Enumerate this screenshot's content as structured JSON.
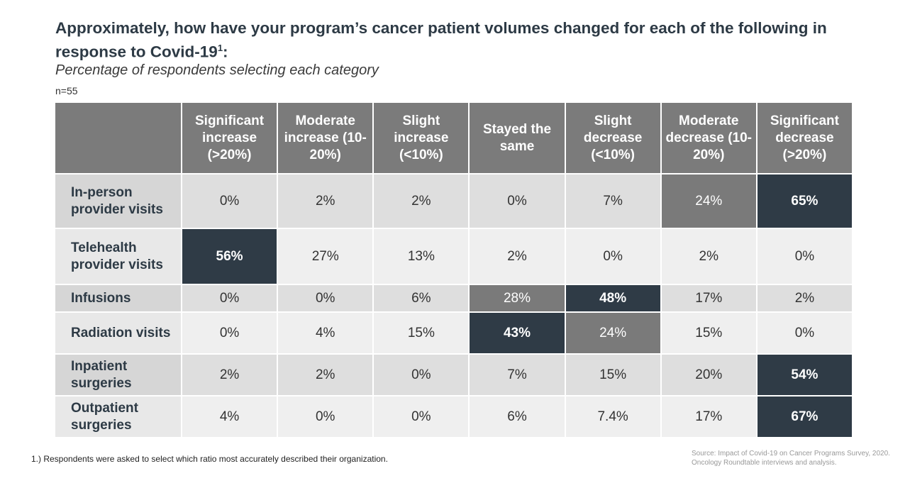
{
  "header": {
    "title": {
      "text": "Approximately, how have your program’s cancer patient volumes changed for each of the following in response to Covid-19",
      "superscript": "1",
      "suffix": ":"
    },
    "subtitle": "Percentage of respondents selecting each category",
    "sample": "n=55"
  },
  "table": {
    "columns": [
      "Significant increase (>20%)",
      "Moderate increase (10-20%)",
      "Slight increase (<10%)",
      "Stayed the same",
      "Slight decrease (<10%)",
      "Moderate decrease (10-20%)",
      "Significant decrease (>20%)"
    ],
    "rows": [
      {
        "label": "In-person provider visits",
        "cells": [
          "0%",
          "2%",
          "2%",
          "0%",
          "7%",
          "24%",
          "65%"
        ],
        "fills": [
          null,
          null,
          null,
          null,
          null,
          "#7a7a7a",
          "#2f3b46"
        ]
      },
      {
        "label": "Telehealth provider visits",
        "cells": [
          "56%",
          "27%",
          "13%",
          "2%",
          "0%",
          "2%",
          "0%"
        ],
        "fills": [
          "#2f3b46",
          null,
          null,
          null,
          null,
          null,
          null
        ]
      },
      {
        "label": "Infusions",
        "cells": [
          "0%",
          "0%",
          "6%",
          "28%",
          "48%",
          "17%",
          "2%"
        ],
        "fills": [
          null,
          null,
          null,
          "#7a7a7a",
          "#2f3b46",
          null,
          null
        ]
      },
      {
        "label": "Radiation visits",
        "cells": [
          "0%",
          "4%",
          "15%",
          "43%",
          "24%",
          "15%",
          "0%"
        ],
        "fills": [
          null,
          null,
          null,
          "#2f3b46",
          "#7a7a7a",
          null,
          null
        ]
      },
      {
        "label": "Inpatient surgeries",
        "cells": [
          "2%",
          "2%",
          "0%",
          "7%",
          "15%",
          "20%",
          "54%"
        ],
        "fills": [
          null,
          null,
          null,
          null,
          null,
          null,
          "#2f3b46"
        ]
      },
      {
        "label": "Outpatient surgeries",
        "cells": [
          "4%",
          "0%",
          "0%",
          "6%",
          "7.4%",
          "17%",
          "67%"
        ],
        "fills": [
          null,
          null,
          null,
          null,
          null,
          null,
          "#2f3b46"
        ]
      }
    ]
  },
  "footer": {
    "footnote": "1.) Respondents were asked to select which ratio most accurately described their organization.",
    "source": [
      "Source: Impact of Covid-19 on Cancer Programs Survey, 2020.",
      "Oncology Roundtable interviews and analysis."
    ]
  }
}
